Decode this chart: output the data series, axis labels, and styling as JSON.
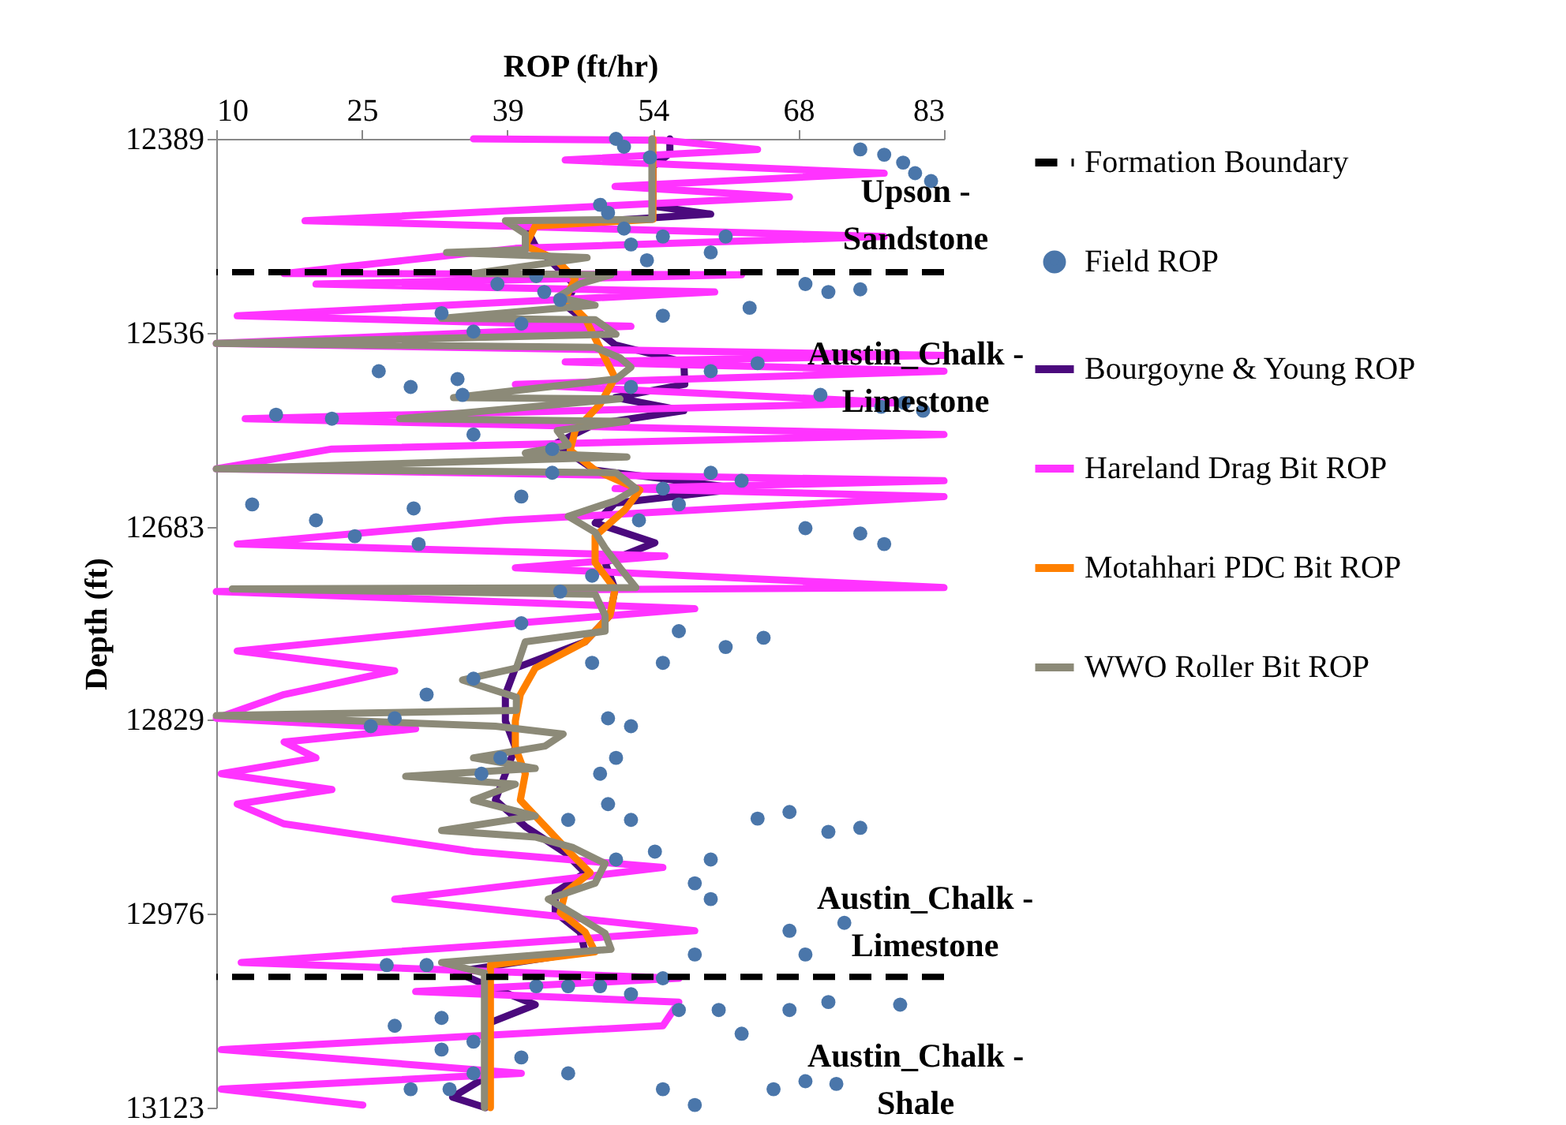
{
  "chart_data": {
    "type": "line",
    "xlabel": "ROP (ft/hr)",
    "ylabel": "Depth (ft)",
    "xlim": [
      10,
      83
    ],
    "xticks": [
      10,
      {
        "value": 24.6,
        "label": "25"
      },
      {
        "value": 39.2,
        "label": "39"
      },
      {
        "value": 53.8,
        "label": "54"
      },
      {
        "value": 68.4,
        "label": "68"
      },
      83
    ],
    "ylim": [
      13123,
      12389
    ],
    "yticks": [
      12389,
      12536,
      12683,
      12829,
      12976,
      13123
    ],
    "grid": false,
    "legend": "right",
    "ref_lines": [
      {
        "axis": "y",
        "value": 12490,
        "label": "Formation Boundary",
        "color": "#000000",
        "line_style": "dashed"
      },
      {
        "axis": "y",
        "value": 13024,
        "color": "#000000",
        "line_style": "dashed"
      }
    ],
    "annotations": [
      "Upson - Sandstone",
      "Austin_Chalk - Limestone",
      "Austin_Chalk - Limestone",
      "Austin_Chalk - Shale"
    ],
    "series": [
      {
        "name": "Field ROP",
        "type": "scatter",
        "color": "#4a76aa",
        "x": [
          50.1,
          50.9,
          53.5,
          74.6,
          77.0,
          78.9,
          80.1,
          81.7,
          48.5,
          49.3,
          50.9,
          51.6,
          54.8,
          61.1,
          59.6,
          53.2,
          42.1,
          38.2,
          42.9,
          44.5,
          32.6,
          40.6,
          35.8,
          54.8,
          63.5,
          69.1,
          71.4,
          74.6,
          26.3,
          29.5,
          34.2,
          34.7,
          51.6,
          59.6,
          64.3,
          70.6,
          76.7,
          79.0,
          80.9,
          21.6,
          16.0,
          35.8,
          43.7,
          43.7,
          40.6,
          54.8,
          56.4,
          59.6,
          62.7,
          13.6,
          20.0,
          29.8,
          23.9,
          30.3,
          52.4,
          69.1,
          74.6,
          77.0,
          47.7,
          44.5,
          40.6,
          56.4,
          47.7,
          54.8,
          61.1,
          64.9,
          35.8,
          31.1,
          27.9,
          25.5,
          49.3,
          51.6,
          38.5,
          50.1,
          36.6,
          48.5,
          49.3,
          45.3,
          51.6,
          64.3,
          67.5,
          71.4,
          74.6,
          50.1,
          54.0,
          59.6,
          58.0,
          59.6,
          67.5,
          73.0,
          69.1,
          58.0,
          27.1,
          31.1,
          42.1,
          45.3,
          48.5,
          54.8,
          51.6,
          56.4,
          60.4,
          67.5,
          71.4,
          78.6,
          27.9,
          32.6,
          35.8,
          40.6,
          45.3,
          32.6,
          62.7,
          35.8,
          33.4,
          29.5,
          54.8,
          58.0,
          65.9,
          69.1,
          72.2
        ],
        "values": [
          12389,
          12395,
          12403,
          12397,
          12401,
          12407,
          12415,
          12421,
          12439,
          12445,
          12457,
          12469,
          12463,
          12463,
          12475,
          12481,
          12493,
          12499,
          12505,
          12511,
          12521,
          12529,
          12535,
          12523,
          12517,
          12499,
          12505,
          12503,
          12565,
          12577,
          12571,
          12583,
          12577,
          12565,
          12559,
          12583,
          12592,
          12589,
          12595,
          12601,
          12598,
          12613,
          12624,
          12642,
          12660,
          12654,
          12666,
          12642,
          12648,
          12666,
          12678,
          12669,
          12690,
          12696,
          12678,
          12684,
          12688,
          12696,
          12720,
          12732,
          12756,
          12762,
          12786,
          12786,
          12774,
          12767,
          12798,
          12810,
          12828,
          12834,
          12828,
          12834,
          12858,
          12858,
          12870,
          12870,
          12893,
          12905,
          12905,
          12904,
          12899,
          12914,
          12911,
          12935,
          12929,
          12935,
          12953,
          12965,
          12989,
          12983,
          13007,
          13007,
          13015,
          13015,
          13031,
          13031,
          13031,
          13025,
          13037,
          13049,
          13049,
          13049,
          13043,
          13045,
          13061,
          13055,
          13073,
          13085,
          13097,
          13079,
          13067,
          13097,
          13109,
          13109,
          13109,
          13121,
          13109,
          13103,
          13105
        ]
      },
      {
        "name": "Bourgoyne & Young ROP",
        "color": "#4b0a7d",
        "x": [
          55.5,
          55.5,
          53.8,
          53.8,
          59.6,
          41,
          42,
          44,
          46,
          45,
          47.5,
          50,
          56.9,
          57,
          50,
          56.9,
          48,
          44,
          48,
          62.7,
          50,
          48,
          54,
          49,
          50,
          49.5,
          47,
          40,
          39,
          39,
          40,
          39,
          38,
          41,
          45,
          47,
          44,
          44,
          46.5,
          47,
          34,
          37,
          42,
          37,
          37,
          33.7,
          37
        ],
        "values": [
          12389,
          12400,
          12410,
          12440,
          12446,
          12455,
          12470,
          12485,
          12500,
          12515,
          12530,
          12545,
          12558,
          12575,
          12585,
          12595,
          12605,
          12620,
          12640,
          12654,
          12665,
          12680,
          12695,
          12710,
          12730,
          12750,
          12770,
          12790,
          12810,
          12830,
          12850,
          12870,
          12890,
          12910,
          12930,
          12945,
          12960,
          12975,
          12990,
          13005,
          13020,
          13030,
          13045,
          13060,
          13100,
          13115,
          13123
        ]
      },
      {
        "name": "Hareland Drag Bit ROP",
        "color": "#ff33ff",
        "x": [
          35.8,
          54.8,
          64.3,
          45,
          77,
          50,
          67.5,
          18.9,
          77,
          40,
          16.8,
          62.7,
          20,
          60,
          12.1,
          51.6,
          10,
          83,
          45,
          83,
          40,
          78.6,
          12.9,
          83,
          21.6,
          10,
          83,
          50,
          83,
          39,
          12.1,
          55,
          40,
          83,
          10,
          58,
          40,
          12.1,
          27.9,
          16.8,
          10,
          30,
          16.8,
          20,
          10.5,
          21.6,
          12.1,
          16.8,
          35.8,
          54.8,
          27.9,
          58,
          12.5,
          56.4,
          30,
          56.4,
          54.8,
          10.5,
          40.6,
          10.5,
          24.7
        ],
        "values": [
          12389,
          12390,
          12397,
          12405,
          12415,
          12425,
          12433,
          12451,
          12463,
          12472,
          12491,
          12492,
          12499,
          12505,
          12523,
          12531,
          12544,
          12553,
          12558,
          12565,
          12575,
          12589,
          12601,
          12613,
          12624,
          12639,
          12648,
          12654,
          12660,
          12678,
          12696,
          12705,
          12714,
          12729,
          12732,
          12745,
          12756,
          12777,
          12792,
          12810,
          12828,
          12836,
          12846,
          12858,
          12870,
          12882,
          12893,
          12908,
          12929,
          12941,
          12965,
          12989,
          13013,
          13025,
          13035,
          13043,
          13061,
          13079,
          13097,
          13109,
          13121
        ]
      },
      {
        "name": "Motahhari PDC Bit ROP",
        "color": "#ff8000",
        "x": [
          53.8,
          53.8,
          42,
          41,
          44,
          46,
          45,
          47,
          48,
          49,
          50,
          48.5,
          46,
          45.5,
          48,
          52.5,
          51,
          48,
          48,
          50,
          49.5,
          47,
          42,
          40.5,
          40,
          40,
          41,
          40.5,
          43,
          45.5,
          47.5,
          45,
          44.5,
          47,
          48,
          37.5,
          37.5
        ],
        "values": [
          12389,
          12450,
          12455,
          12470,
          12480,
          12495,
          12510,
          12525,
          12540,
          12555,
          12570,
          12590,
          12610,
          12625,
          12640,
          12655,
          12670,
          12690,
          12710,
          12730,
          12750,
          12770,
          12790,
          12810,
          12830,
          12850,
          12870,
          12890,
          12910,
          12930,
          12945,
          12960,
          12975,
          12990,
          13005,
          13015,
          13123
        ]
      },
      {
        "name": "WWO Roller Bit ROP",
        "color": "#8c8a78",
        "x": [
          53.7,
          53.7,
          39.0,
          41.0,
          41.0,
          33.1,
          47.2,
          35.8,
          49.6,
          46.4,
          44.2,
          48.0,
          32.6,
          48.0,
          50.1,
          10,
          48.0,
          50.5,
          51.6,
          50.1,
          33.8,
          50.5,
          28.4,
          51.2,
          44.2,
          45.3,
          41.0,
          51.2,
          10,
          50.1,
          52.1,
          50.1,
          45.3,
          48.0,
          49.0,
          50.5,
          52.1,
          11.6,
          48.0,
          49.0,
          49.0,
          41.0,
          40.1,
          34.7,
          40.1,
          40.1,
          10,
          38,
          44.8,
          43,
          35.8,
          42,
          29.0,
          40,
          35.8,
          42,
          32.6,
          42,
          45.8,
          49.0,
          48,
          43.3,
          46,
          49,
          49.6,
          32.6,
          36.9,
          36.9,
          36.9
        ],
        "values": [
          12389,
          12450,
          12451,
          12461,
          12473,
          12475,
          12479,
          12491,
          12492,
          12499,
          12509,
          12515,
          12525,
          12526,
          12537,
          12544,
          12547,
          12555,
          12562,
          12571,
          12585,
          12586,
          12601,
          12603,
          12610,
          12621,
          12627,
          12630,
          12639,
          12642,
          12654,
          12663,
          12675,
          12687,
          12699,
          12714,
          12729,
          12730,
          12734,
          12750,
          12762,
          12770,
          12790,
          12799,
          12812,
          12822,
          12826,
          12834,
          12840,
          12849,
          12858,
          12866,
          12872,
          12878,
          12890,
          12902,
          12913,
          12918,
          12926,
          12938,
          12953,
          12965,
          12977,
          12991,
          13003,
          13013,
          13021,
          13060,
          13123
        ]
      }
    ]
  }
}
